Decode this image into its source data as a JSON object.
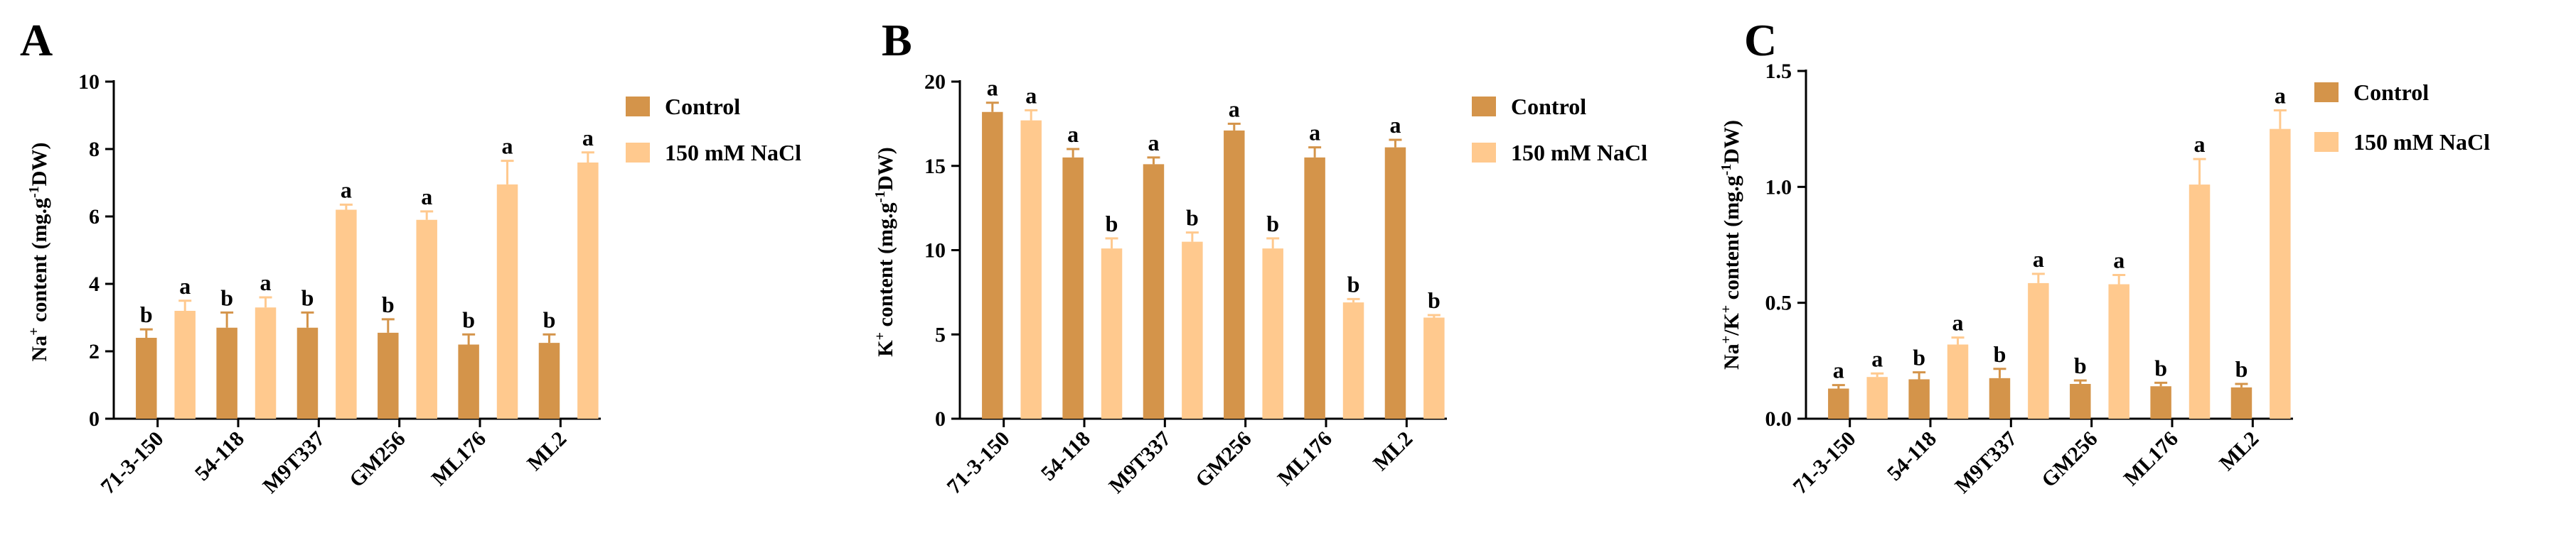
{
  "colors": {
    "control": "#D4944A",
    "nacl": "#FFC98E",
    "axis": "#000000"
  },
  "chart_data": [
    {
      "panel": "A",
      "type": "bar",
      "categories": [
        "71-3-150",
        "54-118",
        "M9T337",
        "GM256",
        "ML176",
        "ML2"
      ],
      "series": [
        {
          "name": "Control",
          "values": [
            2.4,
            2.7,
            2.7,
            2.55,
            2.2,
            2.25
          ],
          "errors": [
            0.25,
            0.45,
            0.45,
            0.4,
            0.3,
            0.25
          ],
          "labels": [
            "b",
            "b",
            "b",
            "b",
            "b",
            "b"
          ]
        },
        {
          "name": "150 mM NaCl",
          "values": [
            3.2,
            3.3,
            6.2,
            5.9,
            6.95,
            7.6
          ],
          "errors": [
            0.3,
            0.3,
            0.15,
            0.25,
            0.7,
            0.3
          ],
          "labels": [
            "a",
            "a",
            "a",
            "a",
            "a",
            "a"
          ]
        }
      ],
      "yticks": [
        "0",
        "2",
        "4",
        "6",
        "8",
        "10"
      ],
      "ylim": [
        0,
        10
      ],
      "ylabel": {
        "pre": "Na",
        "sup1": "+",
        "mid": " content (mg.g",
        "sup2": "-1",
        "post": "DW)"
      }
    },
    {
      "panel": "B",
      "type": "bar",
      "categories": [
        "71-3-150",
        "54-118",
        "M9T337",
        "GM256",
        "ML176",
        "ML2"
      ],
      "series": [
        {
          "name": "Control",
          "values": [
            18.2,
            15.5,
            15.1,
            17.1,
            15.5,
            16.1
          ],
          "errors": [
            0.55,
            0.5,
            0.4,
            0.4,
            0.6,
            0.45
          ],
          "labels": [
            "a",
            "a",
            "a",
            "a",
            "a",
            "a"
          ]
        },
        {
          "name": "150 mM NaCl",
          "values": [
            17.7,
            10.1,
            10.5,
            10.1,
            6.9,
            6.0
          ],
          "errors": [
            0.6,
            0.6,
            0.55,
            0.6,
            0.2,
            0.15
          ],
          "labels": [
            "a",
            "b",
            "b",
            "b",
            "b",
            "b"
          ]
        }
      ],
      "yticks": [
        "0",
        "5",
        "10",
        "15",
        "20"
      ],
      "ylim": [
        0,
        20
      ],
      "ylabel": {
        "pre": "K",
        "sup1": "+",
        "mid": " content (mg.g",
        "sup2": "-1",
        "post": "DW)"
      }
    },
    {
      "panel": "C",
      "type": "bar",
      "categories": [
        "71-3-150",
        "54-118",
        "M9T337",
        "GM256",
        "ML176",
        "ML2"
      ],
      "series": [
        {
          "name": "Control",
          "values": [
            0.13,
            0.17,
            0.175,
            0.15,
            0.14,
            0.135
          ],
          "errors": [
            0.015,
            0.03,
            0.04,
            0.015,
            0.015,
            0.015
          ],
          "labels": [
            "a",
            "b",
            "b",
            "b",
            "b",
            "b"
          ]
        },
        {
          "name": "150 mM NaCl",
          "values": [
            0.18,
            0.32,
            0.585,
            0.58,
            1.01,
            1.25
          ],
          "errors": [
            0.015,
            0.03,
            0.04,
            0.04,
            0.11,
            0.08
          ],
          "labels": [
            "a",
            "a",
            "a",
            "a",
            "a",
            "a"
          ]
        }
      ],
      "yticks": [
        "0.0",
        "0.5",
        "1.0",
        "1.5"
      ],
      "ylim": [
        0,
        1.5
      ],
      "ylabel": {
        "pre": "Na",
        "sup1": "+",
        "mid": "/K",
        "sup2": "+",
        "post": " content (mg.g",
        "sup3": "-1",
        "post2": "DW)"
      }
    }
  ]
}
